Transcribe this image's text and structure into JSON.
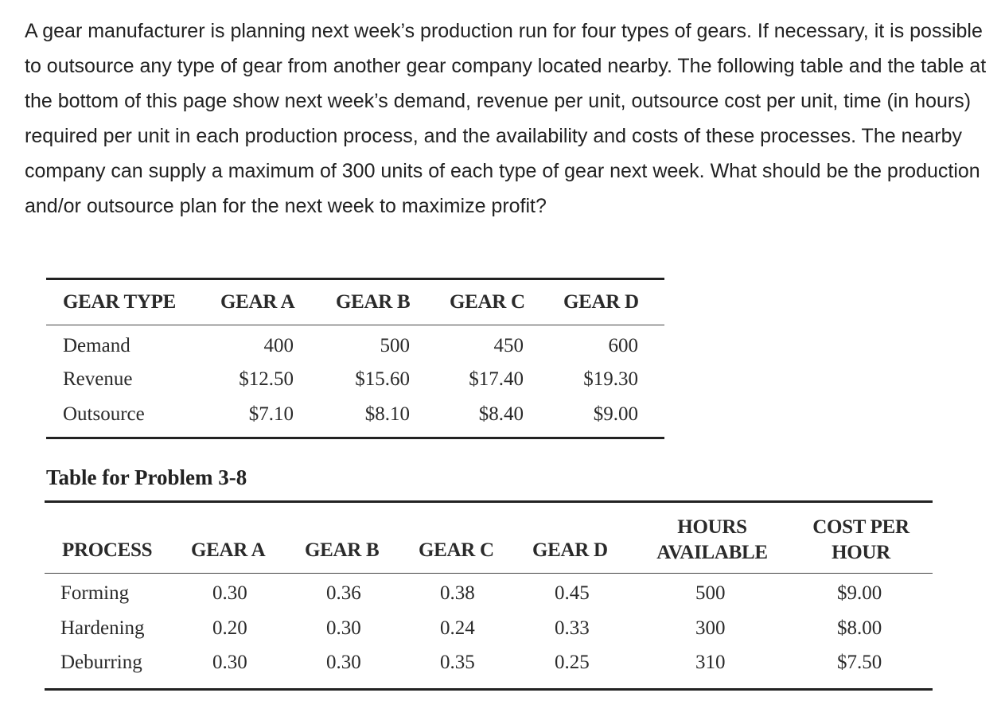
{
  "problem": {
    "text": "A gear manufacturer is planning next week’s production run for four types of gears. If necessary, it is possible to outsource any type of gear from another gear company located nearby. The following table and the table at the bottom of this page show next week’s demand, revenue per unit, outsource cost per unit, time (in hours) required per unit in each production process, and the availability and costs of these processes. The nearby company can supply a maximum of 300 units of each type of gear next week. What should be the production and/or outsource plan for the next week to maximize profit?"
  },
  "table1": {
    "headers": [
      "GEAR TYPE",
      "GEAR A",
      "GEAR B",
      "GEAR C",
      "GEAR D"
    ],
    "rows": [
      {
        "label": "Demand",
        "values": [
          "400",
          "500",
          "450",
          "600"
        ]
      },
      {
        "label": "Revenue",
        "values": [
          "$12.50",
          "$15.60",
          "$17.40",
          "$19.30"
        ]
      },
      {
        "label": "Outsource",
        "values": [
          "$7.10",
          "$8.10",
          "$8.40",
          "$9.00"
        ]
      }
    ]
  },
  "caption": "Table for Problem 3-8",
  "table2": {
    "headers": {
      "process": "PROCESS",
      "gear_a": "GEAR A",
      "gear_b": "GEAR B",
      "gear_c": "GEAR C",
      "gear_d": "GEAR D",
      "hours_line1": "HOURS",
      "hours_line2": "AVAILABLE",
      "cost_line1": "COST PER",
      "cost_line2": "HOUR"
    },
    "rows": [
      {
        "process": "Forming",
        "values": [
          "0.30",
          "0.36",
          "0.38",
          "0.45"
        ],
        "hours": "500",
        "cost": "$9.00"
      },
      {
        "process": "Hardening",
        "values": [
          "0.20",
          "0.30",
          "0.24",
          "0.33"
        ],
        "hours": "300",
        "cost": "$8.00"
      },
      {
        "process": "Deburring",
        "values": [
          "0.30",
          "0.30",
          "0.35",
          "0.25"
        ],
        "hours": "310",
        "cost": "$7.50"
      }
    ]
  }
}
